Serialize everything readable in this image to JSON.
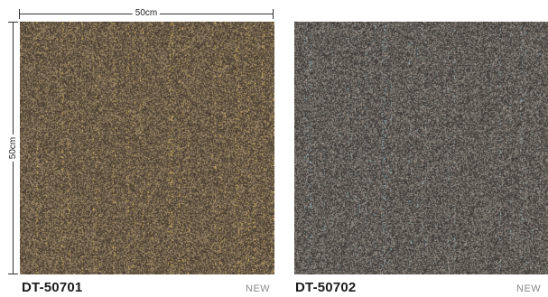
{
  "dimensions": {
    "width_label": "50cm",
    "height_label": "50cm"
  },
  "products": [
    {
      "code": "DT-50701",
      "badge": "NEW",
      "tones": [
        "#7a6a52",
        "#c9a85a",
        "#e6c067",
        "#4c3f33"
      ]
    },
    {
      "code": "DT-50702",
      "badge": "NEW",
      "tones": [
        "#6f6a63",
        "#8aa9b0",
        "#b4a8a0",
        "#403c3a"
      ]
    }
  ]
}
